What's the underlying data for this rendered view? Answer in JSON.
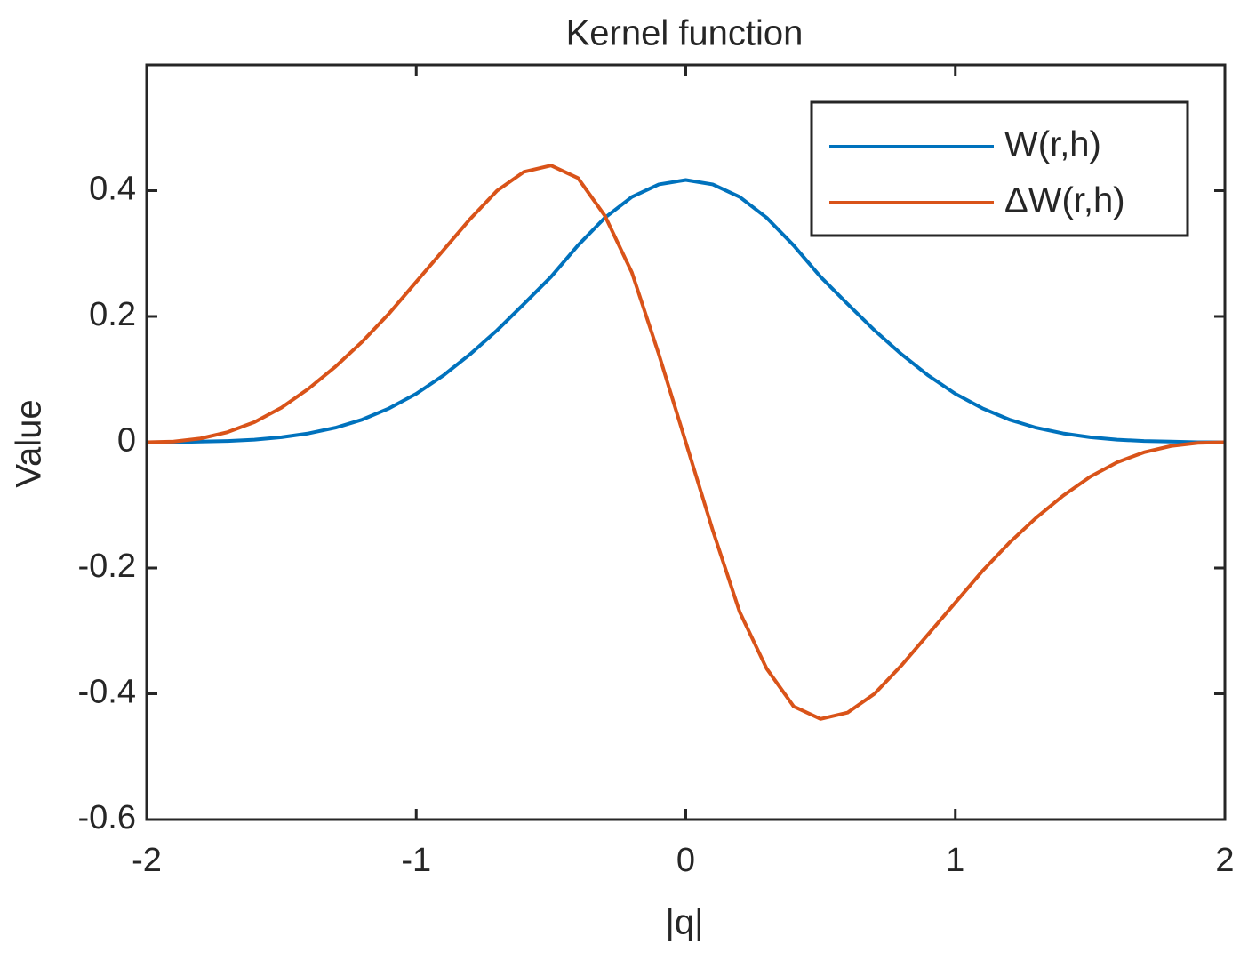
{
  "chart_data": {
    "type": "line",
    "title": "Kernel function",
    "x_label": "|q|",
    "y_label": "Value",
    "x": [
      -2,
      -1.9,
      -1.8,
      -1.7,
      -1.6,
      -1.5,
      -1.4,
      -1.3,
      -1.2,
      -1.1,
      -1,
      -0.9,
      -0.8,
      -0.7,
      -0.6,
      -0.5,
      -0.4,
      -0.3,
      -0.2,
      -0.1,
      0,
      0.1,
      0.2,
      0.3,
      0.4,
      0.5,
      0.6,
      0.7,
      0.8,
      0.9,
      1,
      1.1,
      1.2,
      1.3,
      1.4,
      1.5,
      1.6,
      1.7,
      1.8,
      1.9,
      2
    ],
    "series": [
      {
        "name": "W(r,h)",
        "color": "#0072bd",
        "values": [
          0,
          0,
          0.001,
          0.002,
          0.004,
          0.008,
          0.014,
          0.023,
          0.036,
          0.054,
          0.077,
          0.106,
          0.14,
          0.178,
          0.22,
          0.263,
          0.313,
          0.357,
          0.39,
          0.41,
          0.417,
          0.41,
          0.39,
          0.357,
          0.313,
          0.263,
          0.22,
          0.178,
          0.14,
          0.106,
          0.077,
          0.054,
          0.036,
          0.023,
          0.014,
          0.008,
          0.004,
          0.002,
          0.001,
          0,
          0
        ]
      },
      {
        "name": "ΔW(r,h)",
        "color": "#d95319",
        "values": [
          0,
          0.001,
          0.006,
          0.016,
          0.032,
          0.055,
          0.085,
          0.12,
          0.16,
          0.205,
          0.255,
          0.305,
          0.355,
          0.4,
          0.43,
          0.44,
          0.42,
          0.36,
          0.27,
          0.14,
          0,
          -0.14,
          -0.27,
          -0.36,
          -0.42,
          -0.44,
          -0.43,
          -0.4,
          -0.355,
          -0.305,
          -0.255,
          -0.205,
          -0.16,
          -0.12,
          -0.085,
          -0.055,
          -0.032,
          -0.016,
          -0.006,
          -0.001,
          0
        ]
      }
    ],
    "xlim": [
      -2,
      2
    ],
    "xticks": [
      -2,
      -1,
      0,
      1,
      2
    ],
    "ylim": [
      -0.6,
      0.6
    ],
    "yticks": [
      -0.6,
      -0.4,
      -0.2,
      0,
      0.2,
      0.4
    ],
    "legend": "top-right",
    "grid": false
  }
}
